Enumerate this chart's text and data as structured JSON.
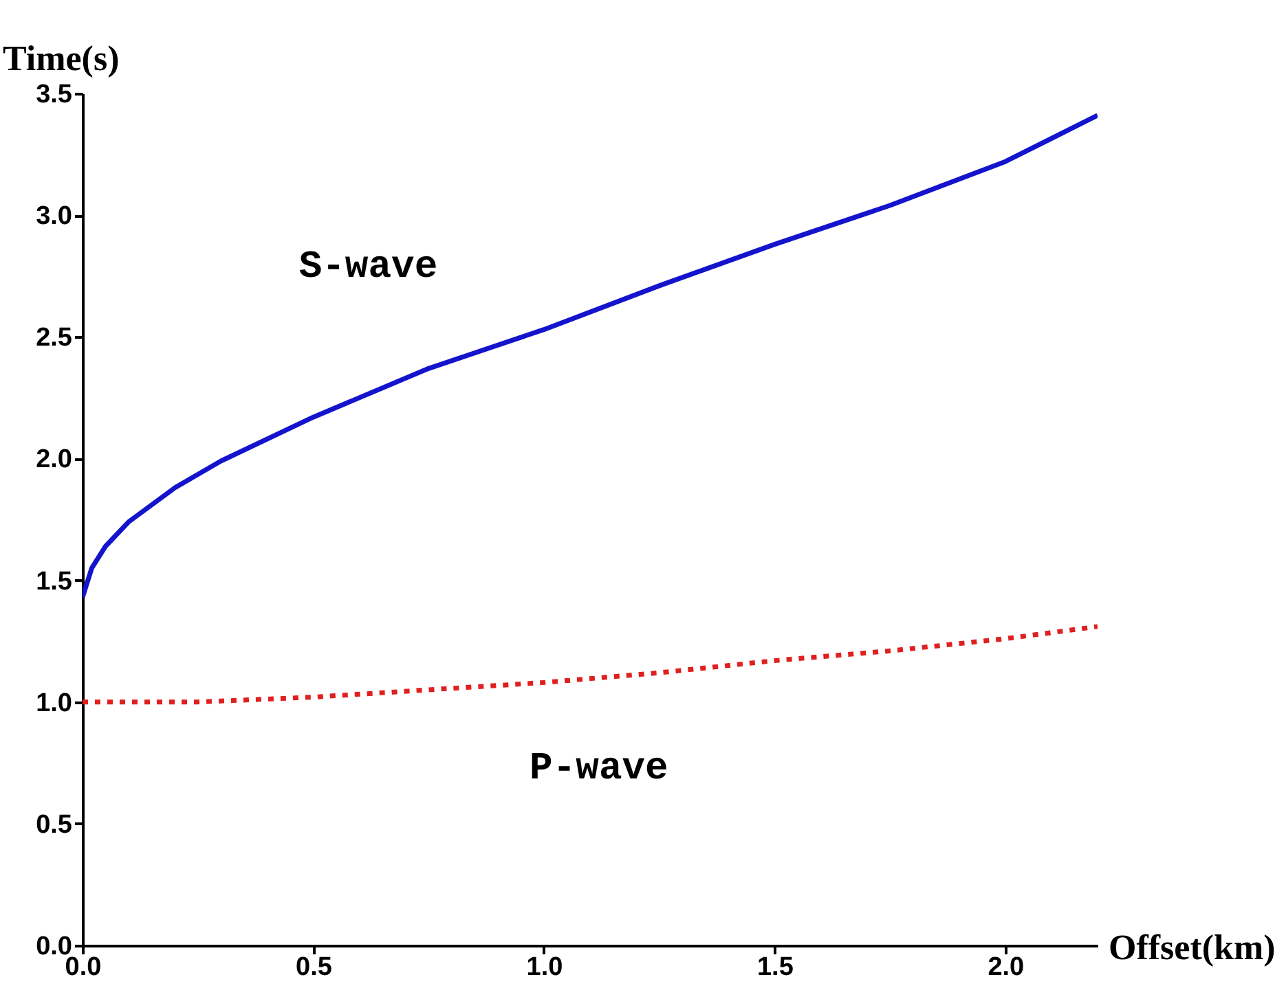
{
  "chart_data": {
    "type": "line",
    "xlabel": "Offset(km)",
    "ylabel": "Time(s)",
    "xlim": [
      0,
      2.2
    ],
    "xticks": [
      {
        "value": 0,
        "label": "0.0"
      },
      0.5,
      {
        "value": 1,
        "label": "1.0"
      },
      1.5,
      {
        "value": 2,
        "label": "2.0"
      }
    ],
    "ylim": [
      0,
      3.5
    ],
    "yticks": [
      {
        "value": 0,
        "label": "0.0"
      },
      0.5,
      {
        "value": 1,
        "label": "1.0"
      },
      1.5,
      {
        "value": 2,
        "label": "2.0"
      },
      2.5,
      {
        "value": 3,
        "label": "3.0"
      },
      3.5
    ],
    "grid": false,
    "series": [
      {
        "name": "S-wave",
        "color": "#1414cc",
        "line_style": "solid",
        "x": [
          0,
          0.02,
          0.05,
          0.1,
          0.2,
          0.3,
          0.5,
          0.75,
          1.0,
          1.25,
          1.5,
          1.75,
          2.0,
          2.2
        ],
        "values": [
          1.43,
          1.55,
          1.64,
          1.74,
          1.88,
          1.99,
          2.17,
          2.37,
          2.53,
          2.71,
          2.88,
          3.04,
          3.22,
          3.41
        ]
      },
      {
        "name": "P-wave",
        "color": "#e02020",
        "line_style": "dotted",
        "x": [
          0,
          0.25,
          0.5,
          0.75,
          1.0,
          1.25,
          1.5,
          1.75,
          2.0,
          2.2
        ],
        "values": [
          1.0,
          1.0,
          1.02,
          1.05,
          1.08,
          1.12,
          1.17,
          1.21,
          1.26,
          1.31
        ]
      }
    ]
  }
}
